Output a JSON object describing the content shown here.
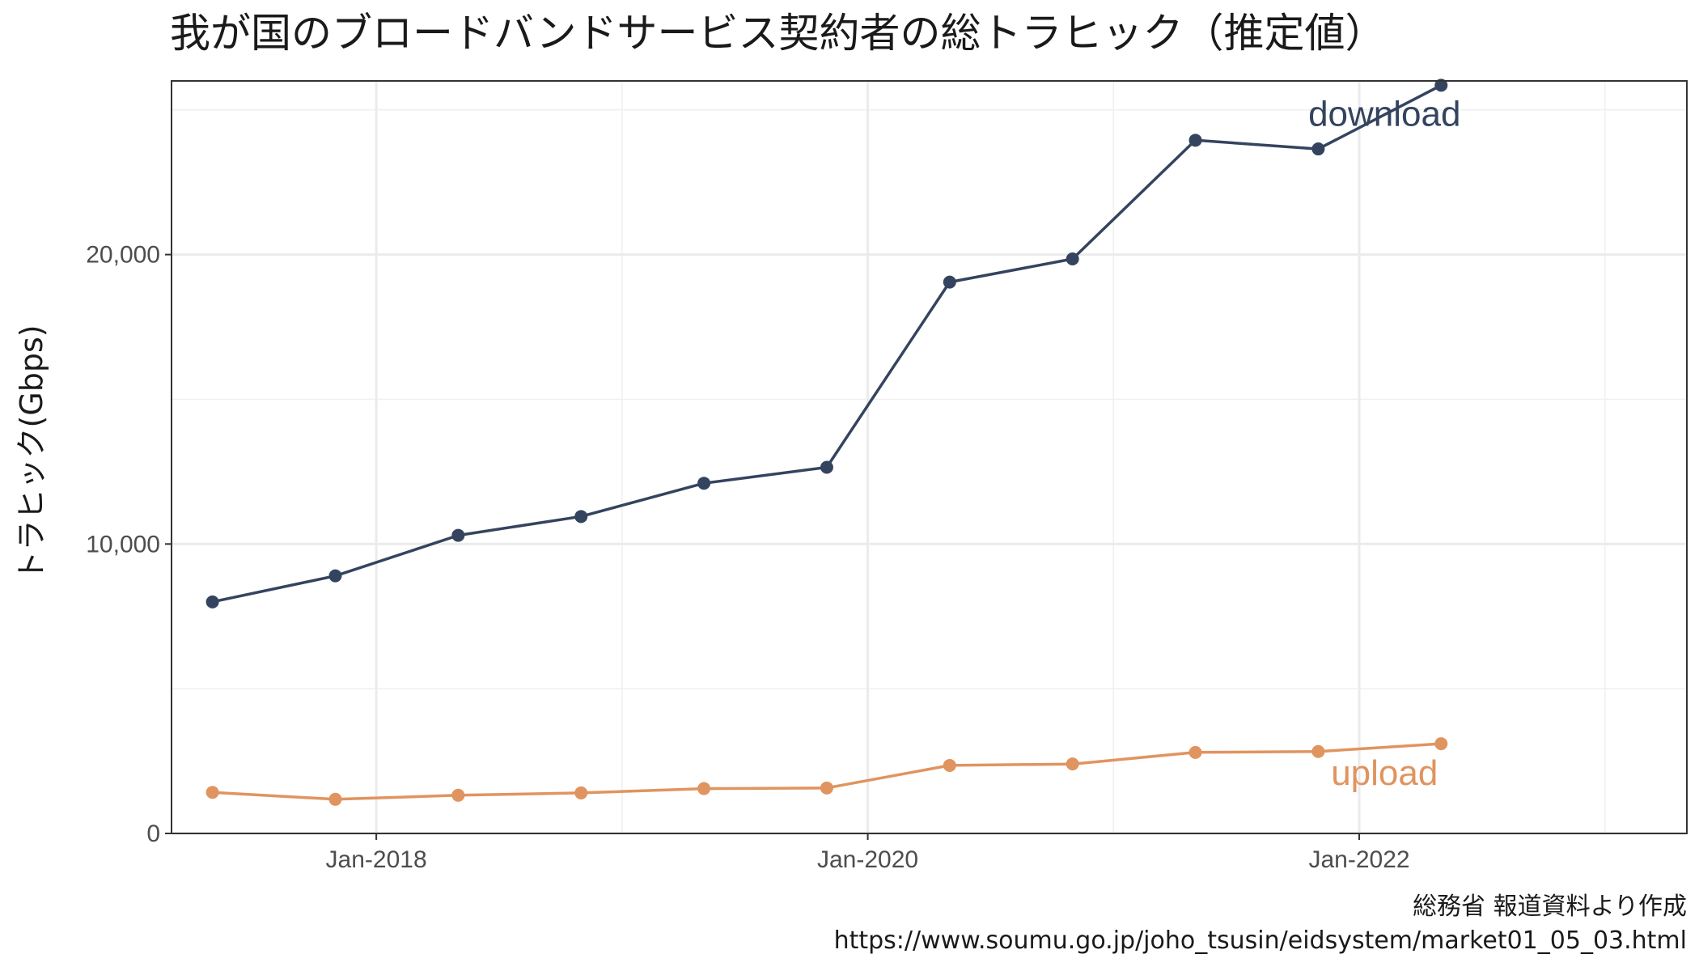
{
  "chart_data": {
    "type": "line",
    "title": "我が国のブロードバンドサービス契約者の総トラヒック（推定値）",
    "xlabel": "",
    "ylabel": "トラヒック(Gbps)",
    "x_ticks": [
      "Jan-2018",
      "Jan-2020",
      "Jan-2022"
    ],
    "y_ticks": [
      "0",
      "10,000",
      "20,000"
    ],
    "ylim": [
      0,
      26000
    ],
    "xlim": [
      "2017-03",
      "2023-05"
    ],
    "grid": true,
    "legend": "none",
    "x": [
      "2017-05",
      "2017-11",
      "2018-05",
      "2018-11",
      "2019-05",
      "2019-11",
      "2020-05",
      "2020-11",
      "2021-05",
      "2021-11",
      "2022-05"
    ],
    "series": [
      {
        "name": "download",
        "color": "#34445f",
        "values": [
          8000,
          8900,
          10300,
          10950,
          12100,
          12650,
          19050,
          19850,
          23950,
          23650,
          25850
        ]
      },
      {
        "name": "upload",
        "color": "#e0945f",
        "values": [
          1420,
          1180,
          1320,
          1400,
          1550,
          1570,
          2350,
          2400,
          2800,
          2830,
          3100
        ]
      }
    ],
    "caption_lines": [
      "総務省 報道資料より作成",
      "https://www.soumu.go.jp/joho_tsusin/eidsystem/market01_05_03.html"
    ]
  }
}
